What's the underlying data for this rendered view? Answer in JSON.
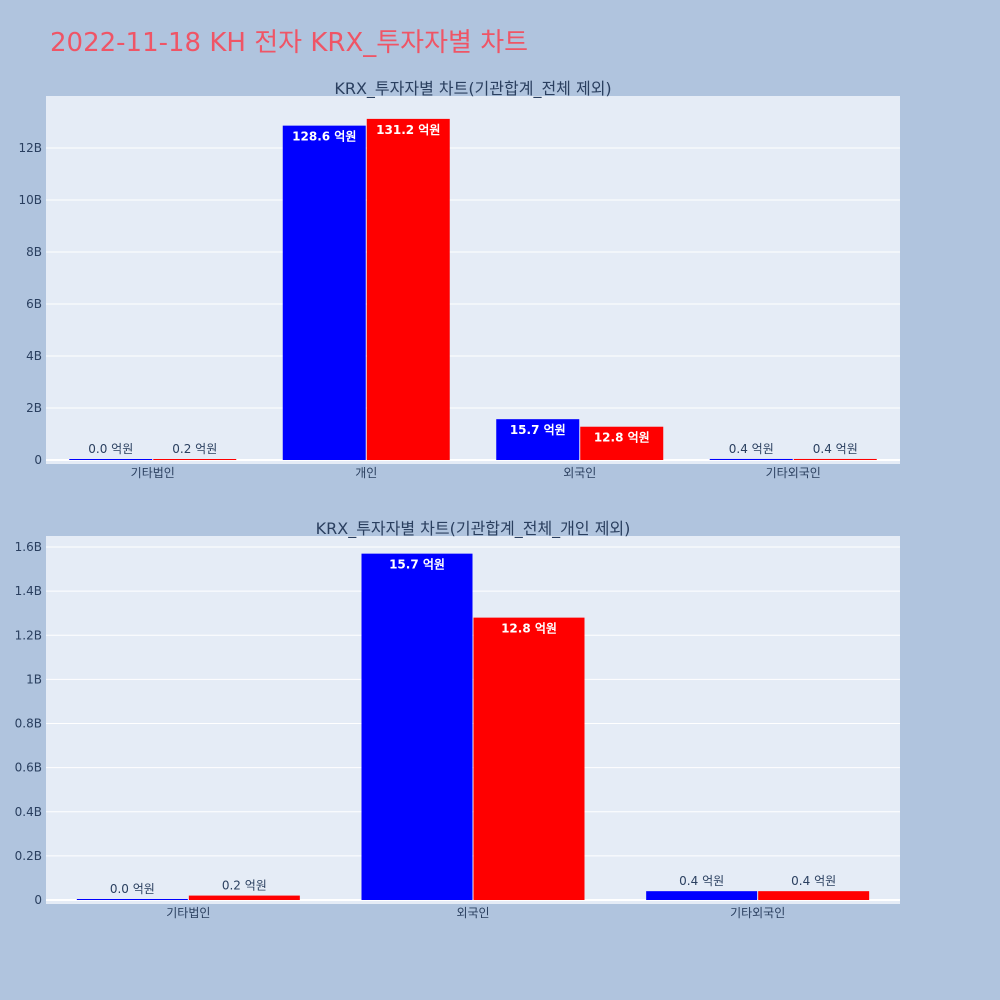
{
  "title": "2022-11-18 KH 전자 KRX_투자자별 차트",
  "colors": {
    "buy": "#0000ff",
    "sell": "#ff0000",
    "plot_bg": "#e5ecf6",
    "page_bg": "#b0c4de"
  },
  "chart_data": [
    {
      "type": "bar",
      "title": "KRX_투자자별 차트(기관합계_전체 제외)",
      "categories": [
        "기타법인",
        "개인",
        "외국인",
        "기타외국인"
      ],
      "series": [
        {
          "values": [
            0.003,
            12.86,
            1.57,
            0.04
          ],
          "labels": [
            "0.0 억원",
            "128.6 억원",
            "15.7 억원",
            "0.4 억원"
          ]
        },
        {
          "values": [
            0.02,
            13.12,
            1.28,
            0.04
          ],
          "labels": [
            "0.2 억원",
            "131.2 억원",
            "12.8 억원",
            "0.4 억원"
          ]
        }
      ],
      "ylim": [
        0,
        14
      ],
      "yticks": [
        0,
        2,
        4,
        6,
        8,
        10,
        12
      ],
      "ytick_labels": [
        "0",
        "2B",
        "4B",
        "6B",
        "8B",
        "10B",
        "12B"
      ],
      "grid": true
    },
    {
      "type": "bar",
      "title": "KRX_투자자별 차트(기관합계_전체_개인 제외)",
      "categories": [
        "기타법인",
        "외국인",
        "기타외국인"
      ],
      "series": [
        {
          "values": [
            0.003,
            1.57,
            0.04
          ],
          "labels": [
            "0.0 억원",
            "15.7 억원",
            "0.4 억원"
          ]
        },
        {
          "values": [
            0.02,
            1.28,
            0.04
          ],
          "labels": [
            "0.2 억원",
            "12.8 억원",
            "0.4 억원"
          ]
        }
      ],
      "ylim": [
        0,
        1.65
      ],
      "yticks": [
        0,
        0.2,
        0.4,
        0.6,
        0.8,
        1,
        1.2,
        1.4,
        1.6
      ],
      "ytick_labels": [
        "0",
        "0.2B",
        "0.4B",
        "0.6B",
        "0.8B",
        "1B",
        "1.2B",
        "1.4B",
        "1.6B"
      ],
      "grid": true
    }
  ]
}
